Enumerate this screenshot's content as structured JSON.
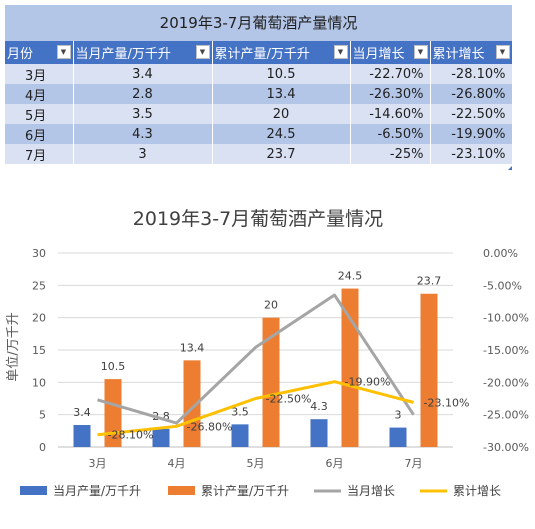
{
  "table": {
    "title": "2019年3-7月葡萄酒产量情况",
    "headers": [
      "月份",
      "当月产量/万千升",
      "累计产量/万千升",
      "当月增长",
      "累计增长"
    ],
    "rows": [
      [
        "3月",
        "3.4",
        "10.5",
        "-22.70%",
        "-28.10%"
      ],
      [
        "4月",
        "2.8",
        "13.4",
        "-26.30%",
        "-26.80%"
      ],
      [
        "5月",
        "3.5",
        "20",
        "-14.60%",
        "-22.50%"
      ],
      [
        "6月",
        "4.3",
        "24.5",
        "-6.50%",
        "-19.90%"
      ],
      [
        "7月",
        "3",
        "23.7",
        "-25%",
        "-23.10%"
      ]
    ]
  },
  "chart_data": {
    "type": "bar",
    "title": "2019年3-7月葡萄酒产量情况",
    "ylabel": "单位/万千升",
    "categories": [
      "3月",
      "4月",
      "5月",
      "6月",
      "7月"
    ],
    "ylim": [
      0,
      30
    ],
    "yticks": [
      "0",
      "5",
      "10",
      "15",
      "20",
      "25",
      "30"
    ],
    "y2lim": [
      -30,
      0
    ],
    "y2ticks": [
      "0.00%",
      "-5.00%",
      "-10.00%",
      "-15.00%",
      "-20.00%",
      "-25.00%",
      "-30.00%"
    ],
    "legend_position": "bottom",
    "grid": true,
    "series": [
      {
        "name": "当月产量/万千升",
        "kind": "bar",
        "axis": "left",
        "color": "#4472c4",
        "values": [
          3.4,
          2.8,
          3.5,
          4.3,
          3
        ],
        "labels": [
          "3.4",
          "2.8",
          "3.5",
          "4.3",
          "3"
        ]
      },
      {
        "name": "累计产量/万千升",
        "kind": "bar",
        "axis": "left",
        "color": "#ed7d31",
        "values": [
          10.5,
          13.4,
          20,
          24.5,
          23.7
        ],
        "labels": [
          "10.5",
          "13.4",
          "20",
          "24.5",
          "23.7"
        ]
      },
      {
        "name": "当月增长",
        "kind": "line",
        "axis": "right",
        "color": "#a5a5a5",
        "values": [
          -22.7,
          -26.3,
          -14.6,
          -6.5,
          -25
        ]
      },
      {
        "name": "累计增长",
        "kind": "line",
        "axis": "right",
        "color": "#ffc000",
        "values": [
          -28.1,
          -26.8,
          -22.5,
          -19.9,
          -23.1
        ],
        "labels": [
          "-28.10%",
          "-26.80%",
          "-22.50%",
          "-19.90%",
          "-23.10%"
        ]
      }
    ]
  }
}
